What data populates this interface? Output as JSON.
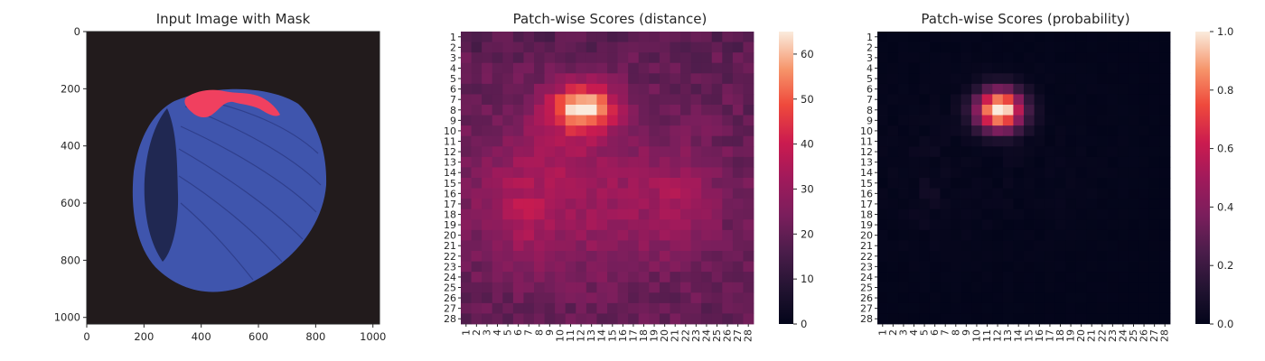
{
  "chart_data": [
    {
      "type": "image",
      "title": "Input Image with Mask",
      "x_ticks": [
        0,
        200,
        400,
        600,
        800,
        1000
      ],
      "y_ticks": [
        0,
        200,
        400,
        600,
        800,
        1000
      ],
      "xlim": [
        0,
        1023
      ],
      "ylim": [
        0,
        1023
      ],
      "background_color": "#221b1c",
      "object_color": "#3f55ad",
      "mask_color": "#f0405f"
    },
    {
      "type": "heatmap",
      "title": "Patch-wise Scores (distance)",
      "x_categories": [
        "1",
        "2",
        "3",
        "4",
        "5",
        "6",
        "7",
        "8",
        "9",
        "10",
        "11",
        "12",
        "13",
        "14",
        "15",
        "16",
        "17",
        "18",
        "19",
        "20",
        "21",
        "22",
        "23",
        "24",
        "25",
        "26",
        "27",
        "28"
      ],
      "y_categories": [
        "1",
        "2",
        "3",
        "4",
        "5",
        "6",
        "7",
        "8",
        "9",
        "10",
        "11",
        "12",
        "13",
        "14",
        "15",
        "16",
        "17",
        "18",
        "19",
        "20",
        "21",
        "22",
        "23",
        "24",
        "25",
        "26",
        "27",
        "28"
      ],
      "colorbar": {
        "vmin": 0,
        "vmax": 65,
        "ticks": [
          0,
          10,
          20,
          30,
          40,
          50,
          60
        ]
      },
      "colormap": "rocket",
      "peak_value": 65,
      "peak_location": {
        "row": 8,
        "col": 12
      }
    },
    {
      "type": "heatmap",
      "title": "Patch-wise Scores (probability)",
      "x_categories": [
        "1",
        "2",
        "3",
        "4",
        "5",
        "6",
        "7",
        "8",
        "9",
        "10",
        "11",
        "12",
        "13",
        "14",
        "15",
        "16",
        "17",
        "18",
        "19",
        "20",
        "21",
        "22",
        "23",
        "24",
        "25",
        "26",
        "27",
        "28"
      ],
      "y_categories": [
        "1",
        "2",
        "3",
        "4",
        "5",
        "6",
        "7",
        "8",
        "9",
        "10",
        "11",
        "12",
        "13",
        "14",
        "15",
        "16",
        "17",
        "18",
        "19",
        "20",
        "21",
        "22",
        "23",
        "24",
        "25",
        "26",
        "27",
        "28"
      ],
      "colorbar": {
        "vmin": 0.0,
        "vmax": 1.0,
        "ticks": [
          "0.0",
          "0.2",
          "0.4",
          "0.6",
          "0.8",
          "1.0"
        ]
      },
      "colormap": "rocket",
      "peak_value": 1.0,
      "peak_location": {
        "row": 8,
        "col": 12
      }
    }
  ]
}
